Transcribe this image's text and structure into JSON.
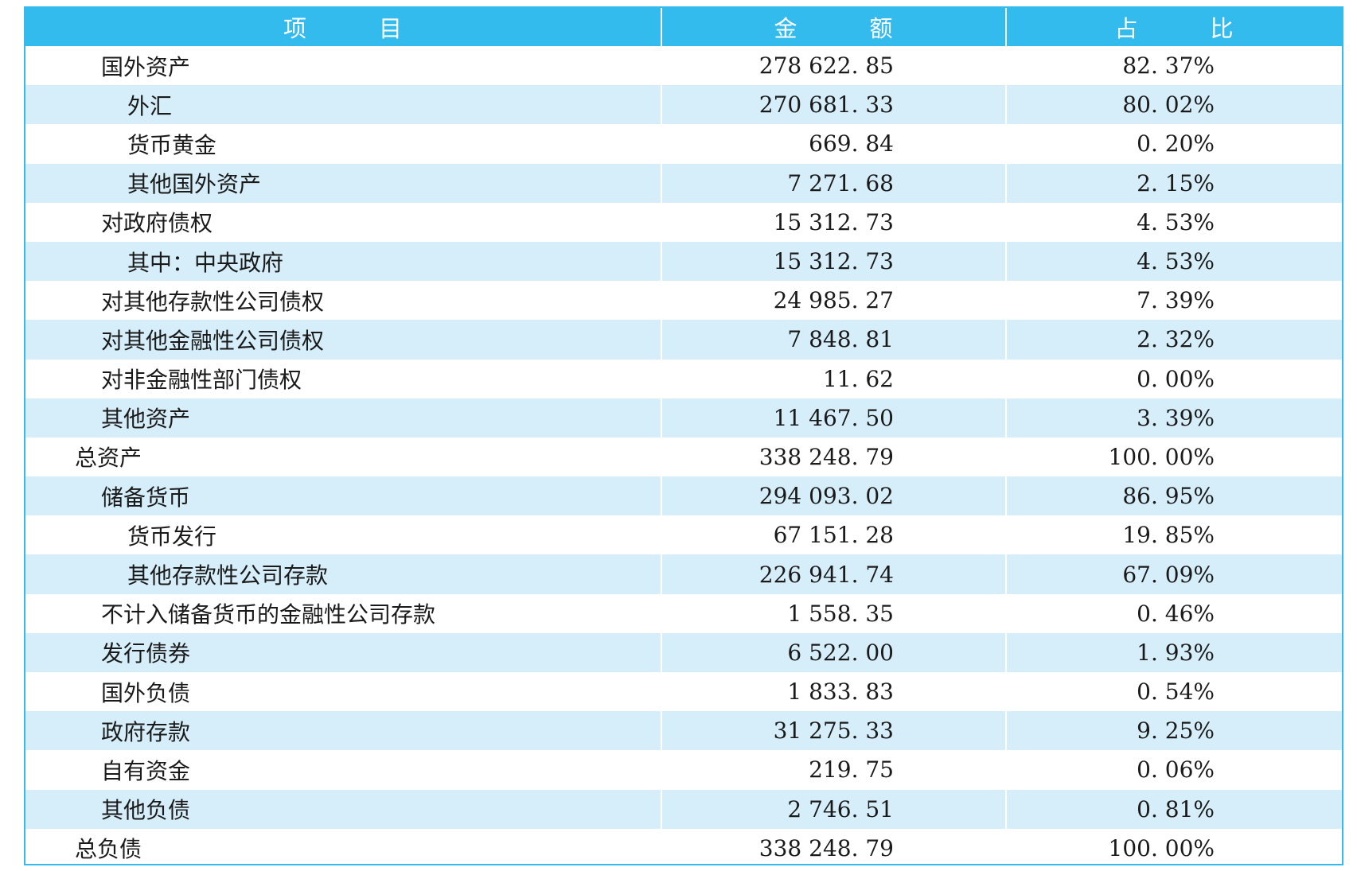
{
  "table": {
    "headers": {
      "item": "项　　　目",
      "amount": "金　　　额",
      "share": "占　　　比"
    },
    "rows": [
      {
        "label": "国外资产",
        "level": 1,
        "amount": "278 622. 85",
        "share": "82. 37%"
      },
      {
        "label": "外汇",
        "level": 2,
        "amount": "270 681. 33",
        "share": "80. 02%"
      },
      {
        "label": "货币黄金",
        "level": 2,
        "amount": "669. 84",
        "share": "0. 20%"
      },
      {
        "label": "其他国外资产",
        "level": 2,
        "amount": "7 271. 68",
        "share": "2. 15%"
      },
      {
        "label": "对政府债权",
        "level": 1,
        "amount": "15 312. 73",
        "share": "4. 53%"
      },
      {
        "label": "其中：中央政府",
        "level": 2,
        "amount": "15 312. 73",
        "share": "4. 53%"
      },
      {
        "label": "对其他存款性公司债权",
        "level": 1,
        "amount": "24 985. 27",
        "share": "7. 39%"
      },
      {
        "label": "对其他金融性公司债权",
        "level": 1,
        "amount": "7 848. 81",
        "share": "2. 32%"
      },
      {
        "label": "对非金融性部门债权",
        "level": 1,
        "amount": "11. 62",
        "share": "0. 00%"
      },
      {
        "label": "其他资产",
        "level": 1,
        "amount": "11 467. 50",
        "share": "3. 39%"
      },
      {
        "label": "总资产",
        "level": 0,
        "amount": "338 248. 79",
        "share": "100. 00%"
      },
      {
        "label": "储备货币",
        "level": 1,
        "amount": "294 093. 02",
        "share": "86. 95%"
      },
      {
        "label": "货币发行",
        "level": 2,
        "amount": "67 151. 28",
        "share": "19. 85%"
      },
      {
        "label": "其他存款性公司存款",
        "level": 2,
        "amount": "226 941. 74",
        "share": "67. 09%"
      },
      {
        "label": "不计入储备货币的金融性公司存款",
        "level": 1,
        "amount": "1 558. 35",
        "share": "0. 46%"
      },
      {
        "label": "发行债券",
        "level": 1,
        "amount": "6 522. 00",
        "share": "1. 93%"
      },
      {
        "label": "国外负债",
        "level": 1,
        "amount": "1 833. 83",
        "share": "0. 54%"
      },
      {
        "label": "政府存款",
        "level": 1,
        "amount": "31 275. 33",
        "share": "9. 25%"
      },
      {
        "label": "自有资金",
        "level": 1,
        "amount": "219. 75",
        "share": "0. 06%"
      },
      {
        "label": "其他负债",
        "level": 1,
        "amount": "2 746. 51",
        "share": "0. 81%"
      },
      {
        "label": "总负债",
        "level": 0,
        "amount": "338 248. 79",
        "share": "100. 00%"
      }
    ]
  },
  "colors": {
    "header_bg": "#33bbee",
    "stripe_bg": "#d6eef9",
    "border": "#33bbee"
  }
}
